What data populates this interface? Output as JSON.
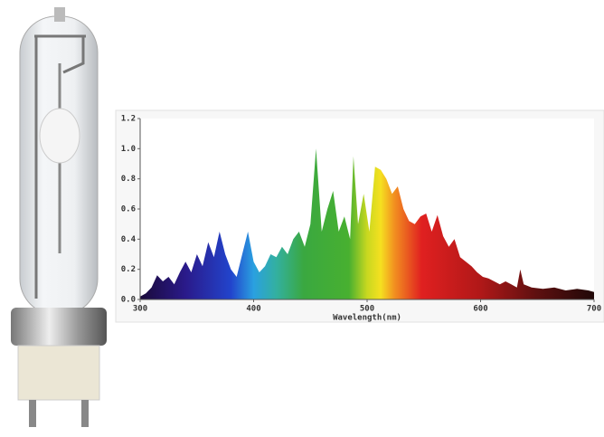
{
  "chart_data": {
    "type": "area",
    "xlabel": "Wavelength(nm)",
    "x": [
      300,
      305,
      310,
      315,
      320,
      325,
      330,
      335,
      340,
      345,
      350,
      355,
      360,
      365,
      370,
      375,
      380,
      385,
      390,
      395,
      400,
      405,
      410,
      415,
      420,
      425,
      430,
      435,
      440,
      445,
      450,
      455,
      460,
      465,
      470,
      475,
      480,
      485,
      488,
      492,
      497,
      502,
      507,
      512,
      517,
      522,
      527,
      532,
      537,
      542,
      547,
      552,
      557,
      562,
      567,
      572,
      577,
      582,
      587,
      592,
      597,
      602,
      607,
      612,
      617,
      622,
      627,
      632,
      635,
      638,
      645,
      655,
      665,
      675,
      685,
      695,
      700
    ],
    "values": [
      0.02,
      0.04,
      0.08,
      0.16,
      0.12,
      0.15,
      0.1,
      0.18,
      0.25,
      0.18,
      0.3,
      0.22,
      0.38,
      0.28,
      0.45,
      0.3,
      0.2,
      0.15,
      0.3,
      0.45,
      0.25,
      0.18,
      0.22,
      0.3,
      0.28,
      0.35,
      0.3,
      0.4,
      0.45,
      0.35,
      0.5,
      1.0,
      0.45,
      0.6,
      0.72,
      0.45,
      0.55,
      0.4,
      0.95,
      0.5,
      0.7,
      0.45,
      0.88,
      0.86,
      0.8,
      0.7,
      0.75,
      0.6,
      0.52,
      0.5,
      0.55,
      0.57,
      0.45,
      0.56,
      0.42,
      0.35,
      0.4,
      0.28,
      0.25,
      0.22,
      0.18,
      0.15,
      0.14,
      0.12,
      0.1,
      0.12,
      0.1,
      0.08,
      0.2,
      0.1,
      0.08,
      0.07,
      0.08,
      0.06,
      0.07,
      0.06,
      0.05
    ],
    "xlim": [
      300,
      700
    ],
    "xticks": [
      300,
      400,
      500,
      600,
      700
    ],
    "ylim": [
      0,
      1.2
    ],
    "yticks": [
      {
        "value": 0,
        "label": "0.0"
      },
      0.2,
      0.4,
      0.6,
      0.8,
      {
        "value": 1,
        "label": "1.0"
      },
      1.2
    ]
  }
}
